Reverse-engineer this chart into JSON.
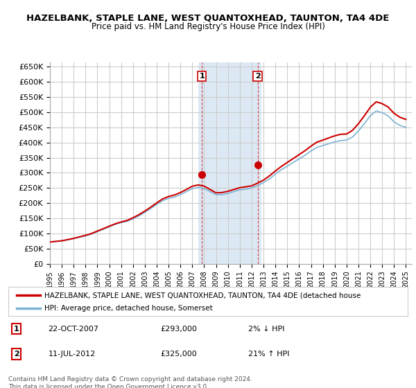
{
  "title": "HAZELBANK, STAPLE LANE, WEST QUANTOXHEAD, TAUNTON, TA4 4DE",
  "subtitle": "Price paid vs. HM Land Registry's House Price Index (HPI)",
  "background_color": "#ffffff",
  "plot_bg_color": "#ffffff",
  "grid_color": "#cccccc",
  "highlight_color": "#dce9f5",
  "hpi_line_color": "#7ab3d4",
  "price_line_color": "#cc0000",
  "sale_marker_color": "#cc0000",
  "ylabel_ticks": [
    "£0",
    "£50K",
    "£100K",
    "£150K",
    "£200K",
    "£250K",
    "£300K",
    "£350K",
    "£400K",
    "£450K",
    "£500K",
    "£550K",
    "£600K",
    "£650K"
  ],
  "ytick_values": [
    0,
    50000,
    100000,
    150000,
    200000,
    250000,
    300000,
    350000,
    400000,
    450000,
    500000,
    550000,
    600000,
    650000
  ],
  "ylim": [
    0,
    665000
  ],
  "xlim_start": 1995.0,
  "xlim_end": 2025.5,
  "xtick_years": [
    1995,
    1996,
    1997,
    1998,
    1999,
    2000,
    2001,
    2002,
    2003,
    2004,
    2005,
    2006,
    2007,
    2008,
    2009,
    2010,
    2011,
    2012,
    2013,
    2014,
    2015,
    2016,
    2017,
    2018,
    2019,
    2020,
    2021,
    2022,
    2023,
    2024,
    2025
  ],
  "highlight_xstart": 2007.5,
  "highlight_xend": 2012.8,
  "sale1_x": 2007.8,
  "sale1_y": 293000,
  "sale1_label": "1",
  "sale2_x": 2012.5,
  "sale2_y": 325000,
  "sale2_label": "2",
  "hpi_x": [
    1995.0,
    1995.5,
    1996.0,
    1996.5,
    1997.0,
    1997.5,
    1998.0,
    1998.5,
    1999.0,
    1999.5,
    2000.0,
    2000.5,
    2001.0,
    2001.5,
    2002.0,
    2002.5,
    2003.0,
    2003.5,
    2004.0,
    2004.5,
    2005.0,
    2005.5,
    2006.0,
    2006.5,
    2007.0,
    2007.5,
    2008.0,
    2008.5,
    2009.0,
    2009.5,
    2010.0,
    2010.5,
    2011.0,
    2011.5,
    2012.0,
    2012.5,
    2013.0,
    2013.5,
    2014.0,
    2014.5,
    2015.0,
    2015.5,
    2016.0,
    2016.5,
    2017.0,
    2017.5,
    2018.0,
    2018.5,
    2019.0,
    2019.5,
    2020.0,
    2020.5,
    2021.0,
    2021.5,
    2022.0,
    2022.5,
    2023.0,
    2023.5,
    2024.0,
    2024.5,
    2025.0
  ],
  "hpi_y": [
    72000,
    74000,
    76000,
    79000,
    83000,
    88000,
    92000,
    98000,
    106000,
    114000,
    122000,
    130000,
    136000,
    140000,
    148000,
    158000,
    170000,
    182000,
    196000,
    208000,
    216000,
    220000,
    228000,
    238000,
    248000,
    252000,
    248000,
    238000,
    228000,
    228000,
    232000,
    238000,
    244000,
    246000,
    250000,
    258000,
    268000,
    280000,
    296000,
    310000,
    322000,
    334000,
    346000,
    358000,
    372000,
    384000,
    390000,
    396000,
    402000,
    406000,
    408000,
    418000,
    438000,
    462000,
    488000,
    504000,
    498000,
    488000,
    468000,
    456000,
    450000
  ],
  "price_x": [
    1995.0,
    1995.5,
    1996.0,
    1996.5,
    1997.0,
    1997.5,
    1998.0,
    1998.5,
    1999.0,
    1999.5,
    2000.0,
    2000.5,
    2001.0,
    2001.5,
    2002.0,
    2002.5,
    2003.0,
    2003.5,
    2004.0,
    2004.5,
    2005.0,
    2005.5,
    2006.0,
    2006.5,
    2007.0,
    2007.5,
    2008.0,
    2008.5,
    2009.0,
    2009.5,
    2010.0,
    2010.5,
    2011.0,
    2011.5,
    2012.0,
    2012.5,
    2013.0,
    2013.5,
    2014.0,
    2014.5,
    2015.0,
    2015.5,
    2016.0,
    2016.5,
    2017.0,
    2017.5,
    2018.0,
    2018.5,
    2019.0,
    2019.5,
    2020.0,
    2020.5,
    2021.0,
    2021.5,
    2022.0,
    2022.5,
    2023.0,
    2023.5,
    2024.0,
    2024.5,
    2025.0
  ],
  "price_y": [
    72000,
    74000,
    76000,
    80000,
    84000,
    89000,
    94000,
    100000,
    108000,
    116000,
    124000,
    132000,
    138000,
    143000,
    152000,
    162000,
    174000,
    187000,
    201000,
    214000,
    222000,
    227000,
    235000,
    245000,
    256000,
    260000,
    256000,
    245000,
    234000,
    235000,
    239000,
    245000,
    251000,
    254000,
    257000,
    266000,
    276000,
    290000,
    306000,
    321000,
    334000,
    347000,
    360000,
    373000,
    388000,
    401000,
    408000,
    415000,
    422000,
    427000,
    428000,
    440000,
    462000,
    488000,
    516000,
    534000,
    528000,
    517000,
    496000,
    483000,
    476000
  ],
  "legend_label1": "HAZELBANK, STAPLE LANE, WEST QUANTOXHEAD, TAUNTON, TA4 4DE (detached house",
  "legend_label2": "HPI: Average price, detached house, Somerset",
  "table_entries": [
    {
      "num": "1",
      "date": "22-OCT-2007",
      "price": "£293,000",
      "change": "2% ↓ HPI"
    },
    {
      "num": "2",
      "date": "11-JUL-2012",
      "price": "£325,000",
      "change": "21% ↑ HPI"
    }
  ],
  "footer": "Contains HM Land Registry data © Crown copyright and database right 2024.\nThis data is licensed under the Open Government Licence v3.0."
}
